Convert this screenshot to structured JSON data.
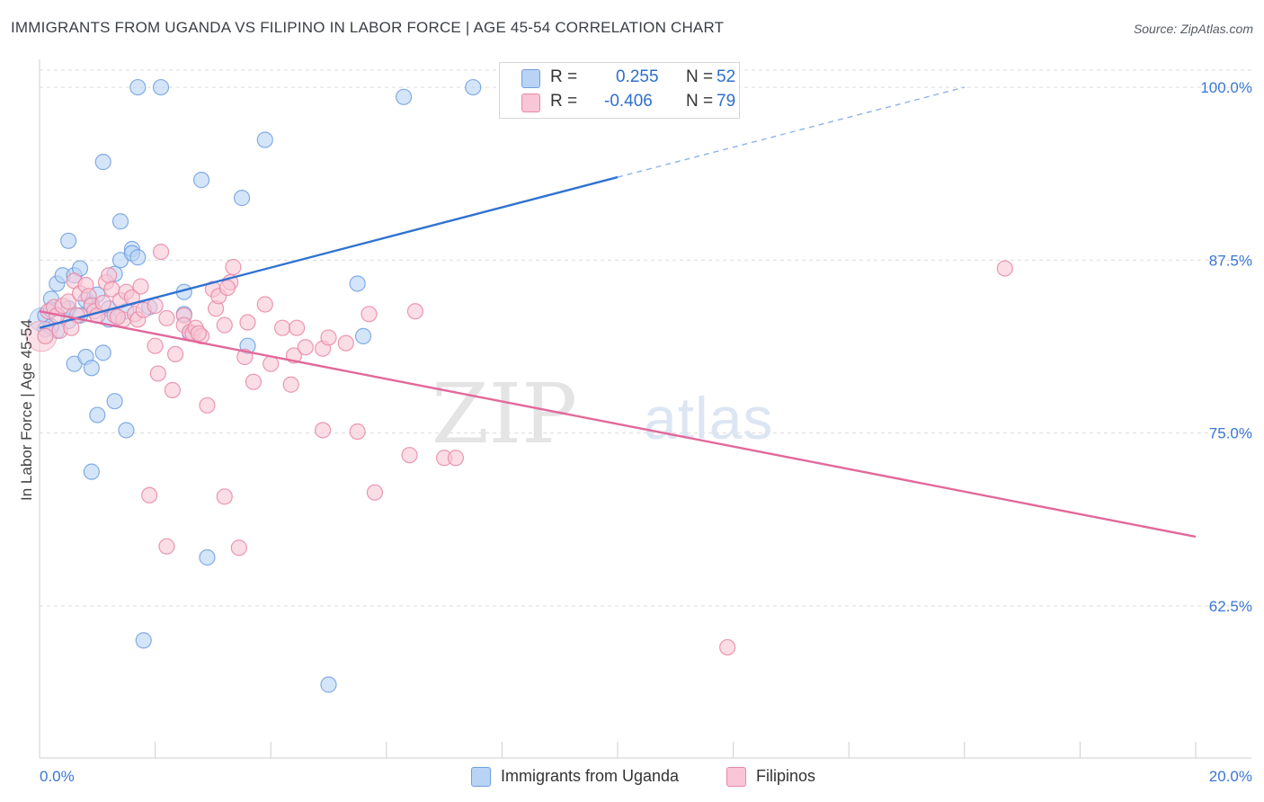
{
  "header": {
    "title": "IMMIGRANTS FROM UGANDA VS FILIPINO IN LABOR FORCE | AGE 45-54 CORRELATION CHART",
    "source": "Source: ZipAtlas.com"
  },
  "legend": {
    "r_label": "R =",
    "n_label": "N =",
    "series": [
      {
        "name": "Immigrants from Uganda",
        "r": "0.255",
        "n": "52"
      },
      {
        "name": "Filipinos",
        "r": "-0.406",
        "n": "79"
      }
    ]
  },
  "watermark": {
    "part1": "ZIP",
    "part2": "atlas"
  },
  "colors": {
    "uganda_fill": "#b9d3f5",
    "uganda_stroke": "#6f9fe0",
    "uganda_line": "#2f72d1",
    "filipino_fill": "#f8c6d6",
    "filipino_stroke": "#e887a6",
    "filipino_line": "#e2689a",
    "axis_text": "#3b76d3",
    "grid": "#dcdcdc"
  },
  "chart_data": {
    "type": "scatter",
    "title": "IMMIGRANTS FROM UGANDA VS FILIPINO IN LABOR FORCE | AGE 45-54 CORRELATION CHART",
    "xlabel": "",
    "ylabel": "In Labor Force | Age 45-54",
    "xlim": [
      0,
      20
    ],
    "ylim": [
      51.5,
      101.5
    ],
    "x_tick_labels": [
      {
        "value": 0,
        "label": "0.0%"
      },
      {
        "value": 20,
        "label": "20.0%"
      }
    ],
    "y_ticks": [
      {
        "value": 62.5,
        "label": "62.5%"
      },
      {
        "value": 75.0,
        "label": "75.0%"
      },
      {
        "value": 87.5,
        "label": "87.5%"
      },
      {
        "value": 100.0,
        "label": "100.0%"
      }
    ],
    "x_minor_ticks": [
      2,
      4,
      6,
      8,
      10,
      12,
      14,
      16,
      18,
      20
    ],
    "series": [
      {
        "name": "Immigrants from Uganda",
        "r": 0.255,
        "n": 52,
        "trend": {
          "x0": 0,
          "y0": 82.6,
          "x1": 10.0,
          "y1": 93.5,
          "dash_x_end": 16.0,
          "dash_y_end": 100.0
        },
        "points": [
          [
            0.1,
            83.5
          ],
          [
            0.1,
            82.5
          ],
          [
            0.2,
            84.7
          ],
          [
            0.2,
            83.9
          ],
          [
            0.3,
            85.8
          ],
          [
            0.3,
            82.4
          ],
          [
            0.4,
            86.4
          ],
          [
            0.5,
            83.1
          ],
          [
            0.5,
            88.9
          ],
          [
            0.6,
            86.4
          ],
          [
            0.6,
            80.0
          ],
          [
            0.7,
            86.9
          ],
          [
            0.8,
            84.6
          ],
          [
            0.8,
            80.5
          ],
          [
            0.9,
            84.3
          ],
          [
            0.9,
            79.7
          ],
          [
            1.0,
            76.3
          ],
          [
            0.9,
            72.2
          ],
          [
            1.1,
            94.6
          ],
          [
            1.1,
            80.8
          ],
          [
            1.2,
            84.0
          ],
          [
            1.3,
            86.5
          ],
          [
            1.3,
            77.3
          ],
          [
            1.4,
            90.3
          ],
          [
            1.4,
            87.5
          ],
          [
            1.5,
            83.8
          ],
          [
            1.5,
            75.2
          ],
          [
            1.6,
            88.3
          ],
          [
            1.6,
            88.0
          ],
          [
            1.7,
            100.0
          ],
          [
            1.7,
            87.7
          ],
          [
            1.8,
            60.0
          ],
          [
            1.9,
            84.1
          ],
          [
            2.1,
            100.0
          ],
          [
            2.5,
            85.2
          ],
          [
            2.5,
            83.6
          ],
          [
            2.6,
            82.2
          ],
          [
            2.8,
            93.3
          ],
          [
            2.9,
            66.0
          ],
          [
            3.5,
            92.0
          ],
          [
            3.6,
            81.3
          ],
          [
            3.9,
            96.2
          ],
          [
            5.0,
            56.8
          ],
          [
            5.5,
            85.8
          ],
          [
            5.6,
            82.0
          ],
          [
            6.3,
            99.3
          ],
          [
            7.5,
            100.0
          ],
          [
            0.5,
            84.0
          ],
          [
            0.7,
            83.5
          ],
          [
            1.0,
            85.0
          ],
          [
            1.2,
            83.2
          ],
          [
            0.2,
            82.7
          ]
        ]
      },
      {
        "name": "Filipinos",
        "r": -0.406,
        "n": 79,
        "trend": {
          "x0": 0,
          "y0": 83.8,
          "x1": 20.0,
          "y1": 67.5
        },
        "points": [
          [
            0.1,
            82.0
          ],
          [
            0.15,
            83.8
          ],
          [
            0.25,
            84.1
          ],
          [
            0.3,
            83.5
          ],
          [
            0.35,
            82.4
          ],
          [
            0.4,
            84.2
          ],
          [
            0.5,
            84.5
          ],
          [
            0.6,
            86.0
          ],
          [
            0.65,
            83.5
          ],
          [
            0.7,
            85.1
          ],
          [
            0.8,
            85.7
          ],
          [
            0.85,
            84.9
          ],
          [
            0.9,
            84.2
          ],
          [
            0.95,
            83.8
          ],
          [
            1.0,
            83.5
          ],
          [
            1.1,
            84.4
          ],
          [
            1.15,
            85.9
          ],
          [
            1.2,
            86.4
          ],
          [
            1.25,
            85.4
          ],
          [
            1.3,
            83.5
          ],
          [
            1.4,
            84.6
          ],
          [
            1.45,
            83.2
          ],
          [
            1.5,
            85.2
          ],
          [
            1.6,
            84.8
          ],
          [
            1.65,
            83.6
          ],
          [
            1.7,
            83.2
          ],
          [
            1.75,
            85.6
          ],
          [
            1.8,
            83.9
          ],
          [
            1.9,
            70.5
          ],
          [
            2.0,
            84.2
          ],
          [
            2.0,
            81.3
          ],
          [
            2.05,
            79.3
          ],
          [
            2.1,
            88.1
          ],
          [
            2.2,
            83.3
          ],
          [
            2.2,
            66.8
          ],
          [
            2.3,
            78.1
          ],
          [
            2.35,
            80.7
          ],
          [
            2.5,
            83.5
          ],
          [
            2.5,
            82.8
          ],
          [
            2.6,
            82.3
          ],
          [
            2.65,
            82.2
          ],
          [
            2.7,
            82.6
          ],
          [
            2.8,
            82.0
          ],
          [
            2.9,
            77.0
          ],
          [
            3.0,
            85.4
          ],
          [
            3.05,
            84.0
          ],
          [
            3.1,
            84.9
          ],
          [
            3.2,
            82.8
          ],
          [
            3.2,
            70.4
          ],
          [
            3.3,
            85.9
          ],
          [
            3.35,
            87.0
          ],
          [
            3.45,
            66.7
          ],
          [
            3.55,
            80.5
          ],
          [
            3.6,
            83.0
          ],
          [
            3.7,
            78.7
          ],
          [
            3.9,
            84.3
          ],
          [
            4.0,
            80.0
          ],
          [
            4.2,
            82.6
          ],
          [
            4.35,
            78.5
          ],
          [
            4.4,
            80.6
          ],
          [
            4.45,
            82.6
          ],
          [
            4.6,
            81.2
          ],
          [
            4.9,
            81.1
          ],
          [
            4.9,
            75.2
          ],
          [
            5.0,
            81.9
          ],
          [
            5.3,
            81.5
          ],
          [
            5.5,
            75.1
          ],
          [
            5.7,
            83.6
          ],
          [
            5.8,
            70.7
          ],
          [
            6.4,
            73.4
          ],
          [
            6.5,
            83.8
          ],
          [
            7.0,
            73.2
          ],
          [
            7.2,
            73.2
          ],
          [
            11.9,
            59.5
          ],
          [
            16.7,
            86.9
          ],
          [
            3.25,
            85.5
          ],
          [
            2.75,
            82.2
          ],
          [
            1.35,
            83.4
          ],
          [
            0.55,
            82.6
          ]
        ]
      }
    ]
  }
}
